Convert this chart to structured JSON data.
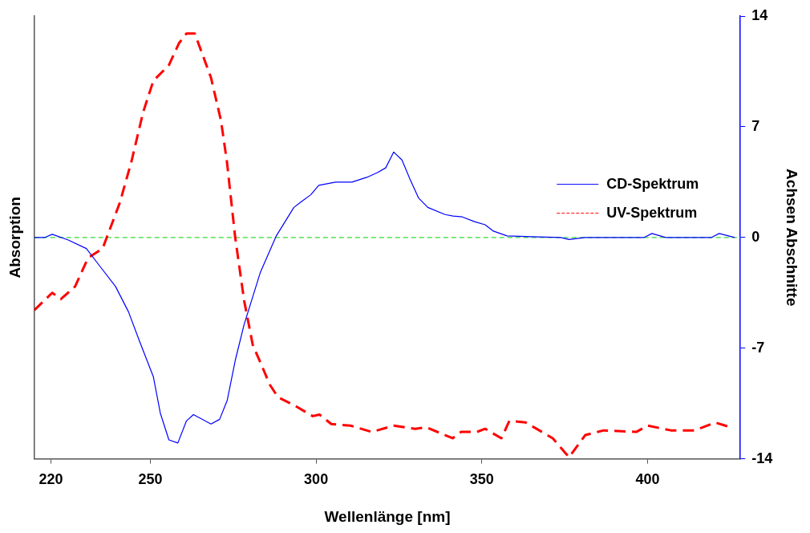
{
  "chart_data": {
    "type": "line",
    "xlabel": "Wellenlänge [nm]",
    "ylabel": "Absorption",
    "y2label": "Achsen Abschnitte",
    "xlim": [
      215,
      428
    ],
    "xticks": [
      220,
      250,
      300,
      350,
      400
    ],
    "y2lim": [
      -14,
      14
    ],
    "y2ticks": [
      -14,
      -7,
      0,
      7,
      14
    ],
    "legend": "right",
    "marker": "none",
    "ref_lines": [
      {
        "axis": "y2",
        "value": 0,
        "color": "#33dd33",
        "line_style": "dashed"
      }
    ],
    "series": [
      {
        "name": "CD-Spektrum",
        "color": "#0000ff",
        "axis": "y2",
        "line_style": "solid",
        "x": [
          215,
          218.2,
          220.4,
          225.1,
          230.7,
          234.7,
          239.5,
          243.4,
          246.8,
          250.9,
          253,
          255.6,
          258.3,
          260.9,
          263,
          268.3,
          270.9,
          273.2,
          275.7,
          278.3,
          283.2,
          288,
          293.3,
          295.8,
          298.4,
          300.8,
          305.9,
          310.8,
          315.3,
          318.5,
          321,
          323.4,
          325.9,
          328.3,
          330.9,
          333.7,
          338.9,
          341.3,
          344.1,
          347.8,
          351,
          353.5,
          357.6,
          364.9,
          373.8,
          376.3,
          381.2,
          399,
          401.3,
          405.5,
          419.3,
          421.6,
          426.3
        ],
        "values": [
          0,
          0,
          0.2,
          -0.15,
          -0.7,
          -1.8,
          -3.1,
          -4.7,
          -6.6,
          -8.8,
          -11.1,
          -12.8,
          -13,
          -11.6,
          -11.2,
          -11.8,
          -11.5,
          -10.3,
          -7.7,
          -5.5,
          -2.2,
          0.1,
          1.9,
          2.3,
          2.7,
          3.3,
          3.5,
          3.5,
          3.8,
          4.1,
          4.4,
          5.4,
          4.9,
          3.7,
          2.5,
          1.9,
          1.45,
          1.35,
          1.3,
          1,
          0.8,
          0.4,
          0.1,
          0.05,
          0,
          -0.13,
          0,
          0,
          0.25,
          0,
          0,
          0.25,
          0
        ]
      },
      {
        "name": "UV-Spektrum",
        "color": "#ff0000",
        "axis": "y2",
        "line_style": "dashed",
        "x": [
          215,
          220.4,
          223,
          227.3,
          231.2,
          235.6,
          240.8,
          244.3,
          247.8,
          250.9,
          255.6,
          258.7,
          260.9,
          263.4,
          268.3,
          271.3,
          273.1,
          275.6,
          278.3,
          280.9,
          283.6,
          286,
          288.5,
          293.3,
          299,
          301,
          304.6,
          310.4,
          316.8,
          323.4,
          329.9,
          333.2,
          341.2,
          343.7,
          348.5,
          351,
          355.9,
          358.3,
          363.2,
          366.5,
          371.4,
          376.3,
          381.2,
          386.8,
          396.6,
          400,
          407,
          414.3,
          420.4,
          425
        ],
        "values": [
          -4.6,
          -3.5,
          -3.9,
          -3.1,
          -1.3,
          -0.7,
          2.2,
          4.8,
          7.9,
          9.9,
          10.9,
          12.3,
          12.9,
          12.9,
          10.1,
          7.4,
          4.8,
          0,
          -4,
          -6.8,
          -8.1,
          -9.3,
          -10.1,
          -10.6,
          -11.3,
          -11.2,
          -11.8,
          -11.9,
          -12.3,
          -11.9,
          -12.1,
          -12,
          -12.7,
          -12.3,
          -12.3,
          -12.1,
          -12.7,
          -11.6,
          -11.7,
          -12.1,
          -12.7,
          -13.9,
          -12.5,
          -12.2,
          -12.3,
          -11.9,
          -12.2,
          -12.2,
          -11.7,
          -12
        ]
      }
    ]
  }
}
